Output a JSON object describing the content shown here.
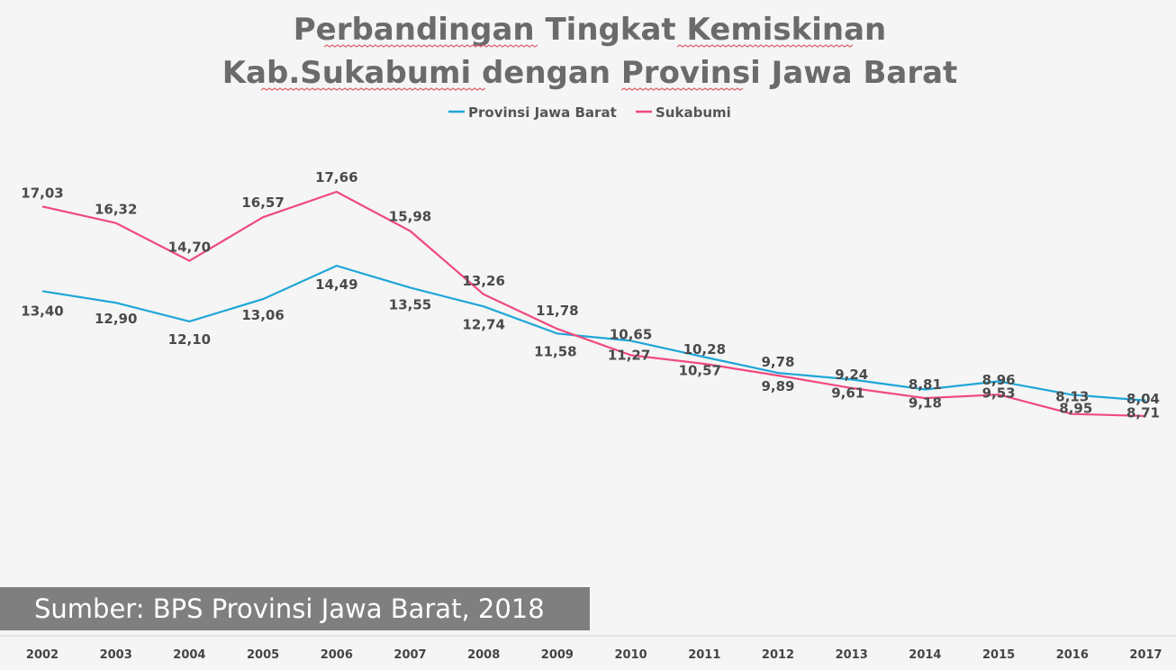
{
  "chart_data": {
    "type": "line",
    "title_lines": [
      "Perbandingan Tingkat Kemiskinan",
      "Kab.Sukabumi dengan Provinsi Jawa Barat"
    ],
    "categories": [
      "2002",
      "2003",
      "2004",
      "2005",
      "2006",
      "2007",
      "2008",
      "2009",
      "2010",
      "2011",
      "2012",
      "2013",
      "2014",
      "2015",
      "2016",
      "2017"
    ],
    "series": [
      {
        "name": "Provinsi Jawa Barat",
        "color": "#1ea6d8",
        "values": [
          13.4,
          12.9,
          12.1,
          13.06,
          14.49,
          13.55,
          12.74,
          11.58,
          11.27,
          10.57,
          9.89,
          9.61,
          9.18,
          9.53,
          8.95,
          8.71
        ],
        "labels": [
          "13,40",
          "12,90",
          "12,10",
          "13,06",
          "14,49",
          "13,55",
          "12,74",
          "11,58",
          "11,27",
          "10,57",
          "9,89",
          "9,61",
          "9,18",
          "9,53",
          "8,95",
          "8,71"
        ]
      },
      {
        "name": "Sukabumi",
        "color": "#ef4a7c",
        "values": [
          17.03,
          16.32,
          14.7,
          16.57,
          17.66,
          15.98,
          13.26,
          11.78,
          10.65,
          10.28,
          9.78,
          9.24,
          8.81,
          8.96,
          8.13,
          8.04
        ],
        "labels": [
          "17,03",
          "16,32",
          "14,70",
          "16,57",
          "17,66",
          "15,98",
          "13,26",
          "11,78",
          "10,65",
          "10,28",
          "9,78",
          "9,24",
          "8,81",
          "8,96",
          "8,13",
          "8,04"
        ]
      }
    ],
    "legend_position": "top",
    "grid": false
  },
  "source_note": "Sumber: BPS Provinsi Jawa Barat, 2018"
}
